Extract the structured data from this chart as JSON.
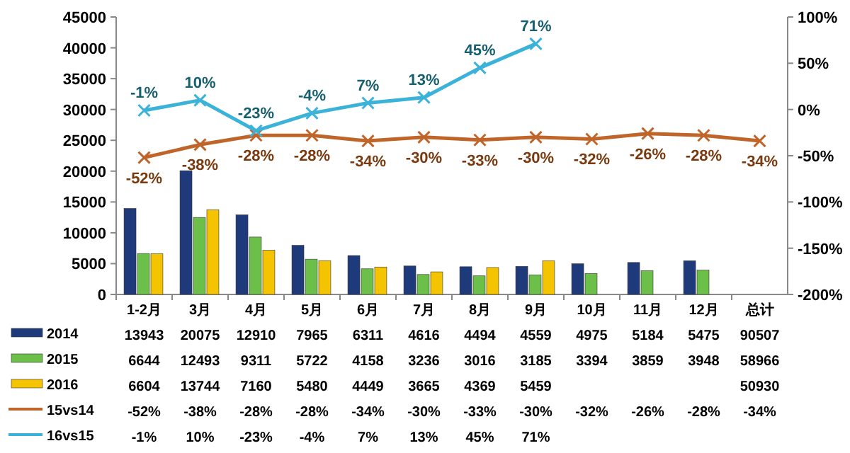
{
  "chart_data": {
    "type": "bar",
    "categories": [
      "1-2月",
      "3月",
      "4月",
      "5月",
      "6月",
      "7月",
      "8月",
      "9月",
      "10月",
      "11月",
      "12月",
      "总计"
    ],
    "series": [
      {
        "name": "2014",
        "color": "#1f3a7a",
        "values": [
          13943,
          20075,
          12910,
          7965,
          6311,
          4616,
          4494,
          4559,
          4975,
          5184,
          5475,
          null
        ],
        "value_labels": [
          "13943",
          "20075",
          "12910",
          "7965",
          "6311",
          "4616",
          "4494",
          "4559",
          "4975",
          "5184",
          "5475",
          "90507"
        ]
      },
      {
        "name": "2015",
        "color": "#6cc04a",
        "values": [
          6644,
          12493,
          9311,
          5722,
          4158,
          3236,
          3016,
          3185,
          3394,
          3859,
          3948,
          null
        ],
        "value_labels": [
          "6644",
          "12493",
          "9311",
          "5722",
          "4158",
          "3236",
          "3016",
          "3185",
          "3394",
          "3859",
          "3948",
          "58966"
        ]
      },
      {
        "name": "2016",
        "color": "#f5c400",
        "values": [
          6604,
          13744,
          7160,
          5480,
          4449,
          3665,
          4369,
          5459,
          null,
          null,
          null,
          null
        ],
        "value_labels": [
          "6604",
          "13744",
          "7160",
          "5480",
          "4449",
          "3665",
          "4369",
          "5459",
          null,
          null,
          null,
          "50930"
        ]
      },
      {
        "name": "15vs14",
        "type": "line",
        "axis": "y2",
        "color": "#c0652a",
        "marker": "cross",
        "values": [
          -52,
          -38,
          -28,
          -28,
          -34,
          -30,
          -33,
          -30,
          -32,
          -26,
          -28,
          -34
        ],
        "value_labels": [
          "-52%",
          "-38%",
          "-28%",
          "-28%",
          "-34%",
          "-30%",
          "-33%",
          "-30%",
          "-32%",
          "-26%",
          "-28%",
          "-34%"
        ]
      },
      {
        "name": "16vs15",
        "type": "line",
        "axis": "y2",
        "color": "#3bb3d9",
        "marker": "cross",
        "values": [
          -1,
          10,
          -23,
          -4,
          7,
          13,
          45,
          71,
          null,
          null,
          null,
          null
        ],
        "value_labels": [
          "-1%",
          "10%",
          "-23%",
          "-4%",
          "7%",
          "13%",
          "45%",
          "71%",
          null,
          null,
          null,
          null
        ]
      }
    ],
    "ylim": [
      0,
      45000
    ],
    "yticks": [
      0,
      5000,
      10000,
      15000,
      20000,
      25000,
      30000,
      35000,
      40000,
      45000
    ],
    "y2lim": [
      -200,
      100
    ],
    "y2ticks": [
      {
        "value": -200,
        "label": "-200%"
      },
      {
        "value": -150,
        "label": "-150%"
      },
      {
        "value": -100,
        "label": "-100%"
      },
      {
        "value": -50,
        "label": "-50%"
      },
      {
        "value": 0,
        "label": "0%"
      },
      {
        "value": 50,
        "label": "50%"
      },
      {
        "value": 100,
        "label": "100%"
      }
    ],
    "grid": false,
    "legend": "bottom"
  }
}
